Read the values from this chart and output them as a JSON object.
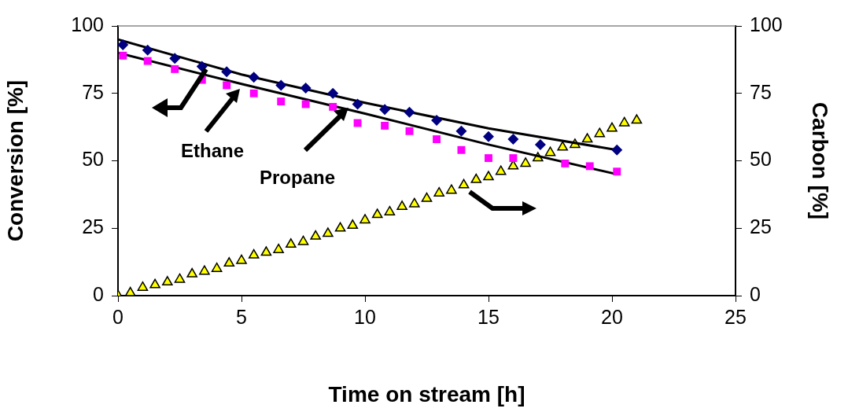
{
  "chart_data": {
    "type": "scatter",
    "xlabel": "Time on stream [h]",
    "ylabel": "Conversion [%]",
    "y2label": "Carbon [%]",
    "xlim": [
      0,
      25
    ],
    "xticks": [
      0,
      5,
      10,
      15,
      20,
      25
    ],
    "ylim": [
      0,
      100
    ],
    "yticks": [
      0,
      25,
      50,
      75,
      100
    ],
    "y2lim": [
      0,
      100
    ],
    "y2ticks": [
      0,
      25,
      50,
      75,
      100
    ],
    "grid": false,
    "legend": false,
    "annotations": [
      "Ethane",
      "Propane"
    ],
    "series": [
      {
        "marker": "diamond",
        "color": "#000080",
        "x": [
          0.2,
          1.2,
          2.3,
          3.4,
          4.4,
          5.5,
          6.6,
          7.6,
          8.7,
          9.7,
          10.8,
          11.8,
          12.9,
          13.9,
          15,
          16,
          17.1,
          20.2
        ],
        "values": [
          93,
          91,
          88,
          85,
          83,
          81,
          78,
          77,
          75,
          71,
          69,
          68,
          65,
          61,
          59,
          58,
          56,
          54
        ]
      },
      {
        "marker": "square",
        "color": "#ff00ff",
        "x": [
          0.2,
          1.2,
          2.3,
          3.4,
          4.4,
          5.5,
          6.6,
          7.6,
          8.7,
          9.7,
          10.8,
          11.8,
          12.9,
          13.9,
          15,
          16,
          18.1,
          19.1,
          20.2
        ],
        "values": [
          89,
          87,
          84,
          80,
          78,
          75,
          72,
          71,
          70,
          64,
          63,
          61,
          58,
          54,
          51,
          51,
          49,
          48,
          46
        ]
      },
      {
        "type": "line",
        "marker": "none",
        "color": "#000000",
        "x": [
          0,
          5,
          10,
          15,
          20.2
        ],
        "values": [
          95,
          82,
          71.5,
          62,
          54
        ]
      },
      {
        "type": "line",
        "marker": "none",
        "color": "#000000",
        "x": [
          0,
          5,
          10,
          15,
          20.2
        ],
        "values": [
          90,
          78.5,
          67.5,
          56,
          45
        ]
      },
      {
        "axis": "y2",
        "marker": "triangle",
        "color": "#ffff00",
        "x": [
          0,
          0.5,
          1,
          1.5,
          2,
          2.5,
          3,
          3.5,
          4,
          4.5,
          5,
          5.5,
          6,
          6.5,
          7,
          7.5,
          8,
          8.5,
          9,
          9.5,
          10,
          10.5,
          11,
          11.5,
          12,
          12.5,
          13,
          13.5,
          14,
          14.5,
          15,
          15.5,
          16,
          16.5,
          17,
          17.5,
          18,
          18.5,
          19,
          19.5,
          20,
          20.5,
          21
        ],
        "values": [
          0,
          1,
          3,
          4,
          5,
          6,
          8,
          9,
          10,
          12,
          13,
          15,
          16,
          17,
          19,
          20,
          22,
          23,
          25,
          26,
          28,
          30,
          31,
          33,
          34,
          36,
          38,
          39,
          41,
          43,
          44,
          46,
          48,
          49,
          51,
          53,
          55,
          56,
          58,
          60,
          62,
          64,
          65
        ]
      }
    ]
  }
}
